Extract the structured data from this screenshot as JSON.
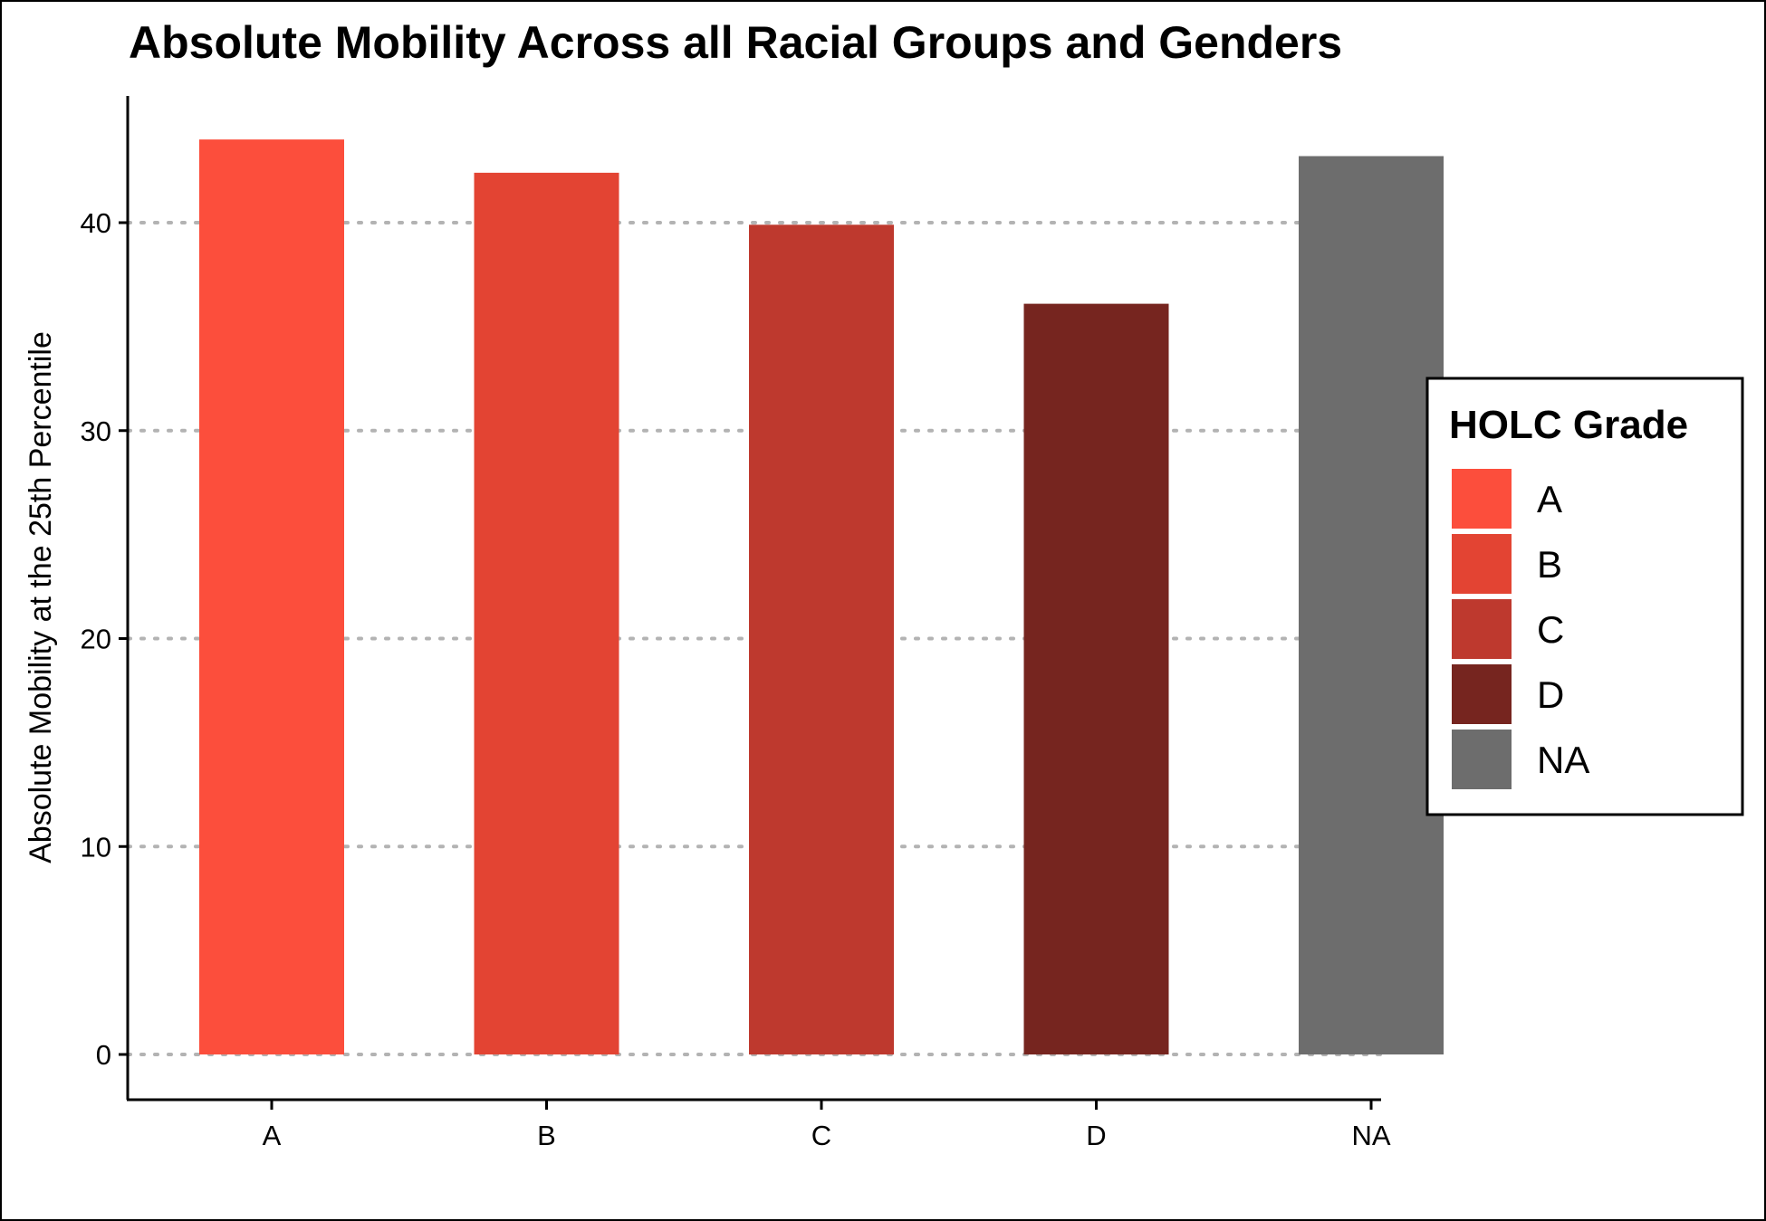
{
  "chart_data": {
    "type": "bar",
    "title": "Absolute Mobility Across all Racial Groups and Genders",
    "xlabel": "",
    "ylabel": "Absolute Mobility at the 25th Percentile",
    "categories": [
      "A",
      "B",
      "C",
      "D",
      "NA"
    ],
    "values": [
      44.0,
      42.4,
      39.9,
      36.1,
      43.2
    ],
    "colors": [
      "#fc4e3c",
      "#e34433",
      "#be392e",
      "#76251f",
      "#6d6d6d"
    ],
    "ylim": [
      -2.2,
      46.2
    ],
    "yticks": [
      0,
      10,
      20,
      30,
      40
    ],
    "grid": "horizontal dotted",
    "legend": {
      "title": "HOLC Grade",
      "placement": "right",
      "items": [
        "A",
        "B",
        "C",
        "D",
        "NA"
      ]
    }
  }
}
